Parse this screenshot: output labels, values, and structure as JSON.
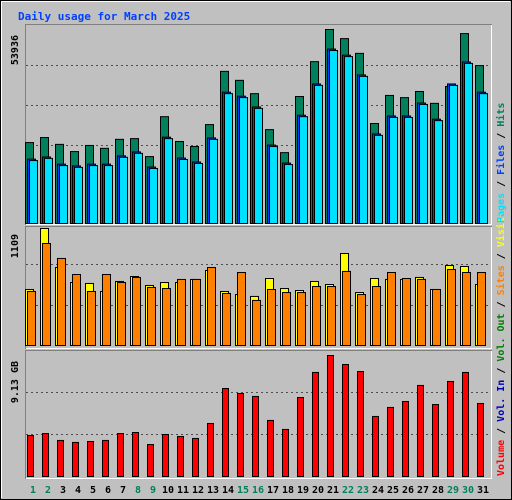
{
  "chart_data": [
    {
      "type": "bar",
      "title": "Daily usage for March 2025",
      "ylim": [
        0,
        53936
      ],
      "yticks": [
        53936
      ],
      "series": [
        {
          "name": "Pages",
          "color": "#00e0ff",
          "values": [
            17500,
            18100,
            16100,
            15600,
            16100,
            16100,
            18400,
            19500,
            15300,
            23600,
            17800,
            16700,
            23400,
            36100,
            35000,
            32000,
            21400,
            16400,
            29700,
            38400,
            48100,
            46400,
            40900,
            24500,
            29500,
            29500,
            33100,
            28600,
            38400,
            44500,
            36100
          ]
        },
        {
          "name": "Files",
          "color": "#0040ff",
          "values": [
            17900,
            18500,
            16500,
            16000,
            16500,
            16500,
            18800,
            19900,
            15700,
            24000,
            18200,
            17100,
            23800,
            36500,
            35400,
            32400,
            21800,
            16800,
            30100,
            38800,
            48500,
            46800,
            41300,
            24900,
            29900,
            29900,
            33500,
            29000,
            38800,
            44900,
            36500
          ]
        },
        {
          "name": "Hits",
          "color": "#00805c",
          "values": [
            22500,
            23900,
            22000,
            20000,
            21700,
            20900,
            23400,
            23600,
            18600,
            29700,
            22800,
            21400,
            27500,
            42300,
            39800,
            36100,
            26100,
            19700,
            35300,
            45000,
            53936,
            51400,
            47300,
            27800,
            35600,
            35000,
            36700,
            33400,
            38100,
            52800,
            43900
          ]
        }
      ]
    },
    {
      "type": "bar",
      "ylim": [
        0,
        1109
      ],
      "yticks": [
        1109
      ],
      "series": [
        {
          "name": "Sites",
          "color": "#ff8000",
          "values": [
            512,
            967,
            825,
            673,
            512,
            673,
            597,
            645,
            550,
            540,
            626,
            626,
            739,
            493,
            692,
            427,
            531,
            502,
            502,
            559,
            559,
            702,
            483,
            559,
            692,
            635,
            626,
            531,
            720,
            692,
            692
          ]
        },
        {
          "name": "Visits",
          "color": "#ffff00",
          "values": [
            531,
            1109,
            739,
            597,
            588,
            512,
            607,
            654,
            569,
            597,
            597,
            626,
            711,
            512,
            483,
            465,
            635,
            540,
            521,
            607,
            578,
            872,
            502,
            635,
            626,
            626,
            645,
            531,
            758,
            749,
            578
          ]
        }
      ]
    },
    {
      "type": "bar",
      "ylim": [
        0,
        9.13
      ],
      "yticks": [
        {
          "value": 9.13,
          "label": "9.13 GB"
        }
      ],
      "categories": [
        "1",
        "2",
        "3",
        "4",
        "5",
        "6",
        "7",
        "8",
        "9",
        "10",
        "11",
        "12",
        "13",
        "14",
        "15",
        "16",
        "17",
        "18",
        "19",
        "20",
        "21",
        "22",
        "23",
        "24",
        "25",
        "26",
        "27",
        "28",
        "29",
        "30",
        "31"
      ],
      "category_colors": [
        "#00805c",
        "#00805c",
        "#000000",
        "#000000",
        "#000000",
        "#000000",
        "#000000",
        "#00805c",
        "#00805c",
        "#000000",
        "#000000",
        "#000000",
        "#000000",
        "#000000",
        "#00805c",
        "#00805c",
        "#000000",
        "#000000",
        "#000000",
        "#000000",
        "#000000",
        "#00805c",
        "#00805c",
        "#000000",
        "#000000",
        "#000000",
        "#000000",
        "#000000",
        "#00805c",
        "#00805c",
        "#000000"
      ],
      "series": [
        {
          "name": "Volume",
          "color": "#ff0000",
          "values": [
            3.09,
            3.24,
            2.72,
            2.57,
            2.64,
            2.72,
            3.24,
            3.32,
            2.41,
            3.17,
            3.02,
            2.87,
            4.0,
            6.64,
            6.26,
            6.04,
            4.23,
            3.55,
            5.96,
            7.85,
            9.13,
            8.45,
            7.92,
            4.53,
            5.21,
            5.66,
            6.87,
            5.43,
            7.17,
            7.85,
            5.51
          ]
        },
        {
          "name": "Vol. In",
          "color": "#0000c0",
          "values": [
            0,
            0,
            0,
            0,
            0,
            0,
            0,
            0,
            0,
            0,
            0,
            0,
            0,
            0,
            0,
            0,
            0,
            0,
            0,
            0,
            0,
            0,
            0,
            0,
            0,
            0,
            0,
            0,
            0,
            0,
            0
          ]
        },
        {
          "name": "Vol. Out",
          "color": "#008000",
          "values": [
            0,
            0,
            0,
            0,
            0,
            0,
            0,
            0,
            0,
            0,
            0,
            0,
            0,
            0,
            0,
            0,
            0,
            0,
            0,
            0,
            0,
            0,
            0,
            0,
            0,
            0,
            0,
            0,
            0,
            0,
            0
          ]
        }
      ]
    }
  ]
}
